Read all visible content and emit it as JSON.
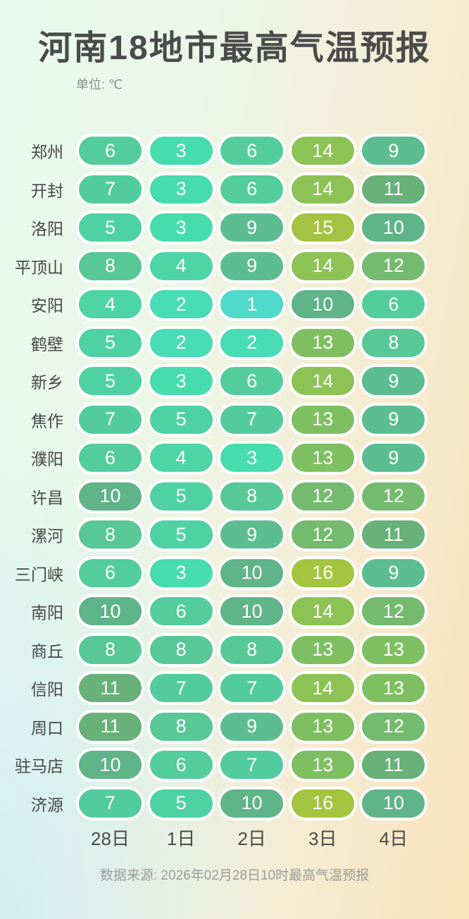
{
  "header": {
    "title": "河南18地市最高气温预报",
    "unit_label": "单位: ℃"
  },
  "chart_data": {
    "type": "heatmap",
    "title": "河南18地市最高气温预报",
    "unit": "℃",
    "columns": [
      "28日",
      "1日",
      "2日",
      "3日",
      "4日"
    ],
    "rows": [
      {
        "city": "郑州",
        "values": [
          6,
          3,
          6,
          14,
          9
        ]
      },
      {
        "city": "开封",
        "values": [
          7,
          3,
          6,
          14,
          11
        ]
      },
      {
        "city": "洛阳",
        "values": [
          5,
          3,
          9,
          15,
          10
        ]
      },
      {
        "city": "平顶山",
        "values": [
          8,
          4,
          9,
          14,
          12
        ]
      },
      {
        "city": "安阳",
        "values": [
          4,
          2,
          1,
          10,
          6
        ]
      },
      {
        "city": "鹤壁",
        "values": [
          5,
          2,
          2,
          13,
          8
        ]
      },
      {
        "city": "新乡",
        "values": [
          5,
          3,
          6,
          14,
          9
        ]
      },
      {
        "city": "焦作",
        "values": [
          7,
          5,
          7,
          13,
          9
        ]
      },
      {
        "city": "濮阳",
        "values": [
          6,
          4,
          3,
          13,
          9
        ]
      },
      {
        "city": "许昌",
        "values": [
          10,
          5,
          8,
          12,
          12
        ]
      },
      {
        "city": "漯河",
        "values": [
          8,
          5,
          9,
          12,
          11
        ]
      },
      {
        "city": "三门峡",
        "values": [
          6,
          3,
          10,
          16,
          9
        ]
      },
      {
        "city": "南阳",
        "values": [
          10,
          6,
          10,
          14,
          12
        ]
      },
      {
        "city": "商丘",
        "values": [
          8,
          8,
          8,
          13,
          13
        ]
      },
      {
        "city": "信阳",
        "values": [
          11,
          7,
          7,
          14,
          13
        ]
      },
      {
        "city": "周口",
        "values": [
          11,
          8,
          9,
          13,
          12
        ]
      },
      {
        "city": "驻马店",
        "values": [
          10,
          6,
          7,
          13,
          11
        ]
      },
      {
        "city": "济源",
        "values": [
          7,
          5,
          10,
          16,
          10
        ]
      }
    ],
    "color_scale": {
      "1": "#4fdac9",
      "2": "#48dcb4",
      "3": "#46dcac",
      "4": "#4dd5a6",
      "5": "#4ed2a3",
      "6": "#53cd9d",
      "7": "#52cc9f",
      "8": "#57c896",
      "9": "#5cbe90",
      "10": "#5fb488",
      "11": "#68b179",
      "12": "#74bb6f",
      "13": "#7ec061",
      "14": "#8dc354",
      "15": "#a5c342",
      "16": "#a3c53f"
    }
  },
  "footer": {
    "source": "数据来源: 2026年02月28日10时最高气温预报"
  },
  "colors": {
    "title_text": "#4b4b4b",
    "label_text": "#474747",
    "value_text": "#ffffff",
    "pill_border": "#ffffff",
    "footer_text": "#9b9b9b",
    "bg_left": "#e7faf1",
    "bg_right": "#f9e3bb"
  }
}
